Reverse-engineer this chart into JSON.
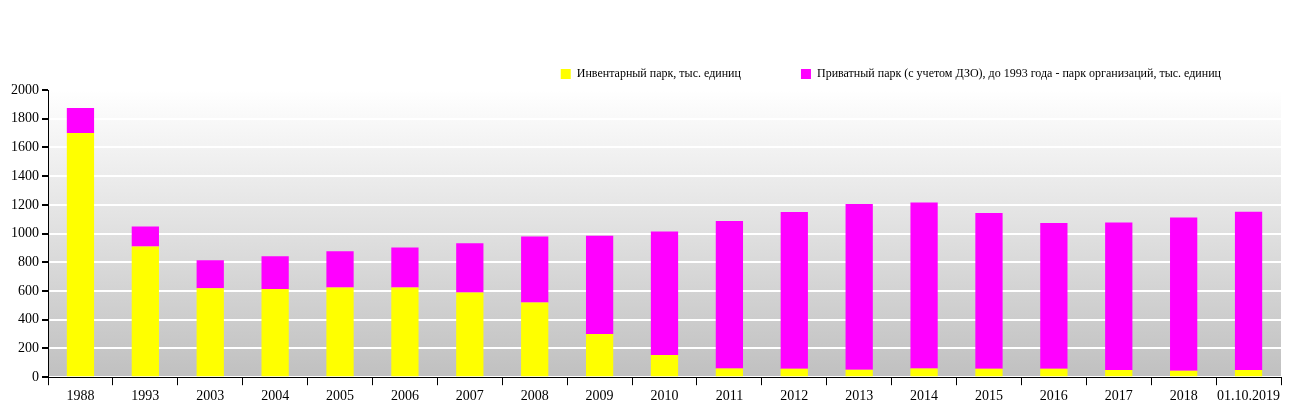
{
  "chart_data": {
    "type": "bar",
    "stacked": true,
    "categories": [
      "1988",
      "1993",
      "2003",
      "2004",
      "2005",
      "2006",
      "2007",
      "2008",
      "2009",
      "2010",
      "2011",
      "2012",
      "2013",
      "2014",
      "2015",
      "2016",
      "2017",
      "2018",
      "01.10.2019"
    ],
    "series": [
      {
        "name": "Инвентарный парк, тыс. единиц",
        "color": "#ffff00",
        "values": [
          1700,
          910,
          620,
          615,
          625,
          625,
          590,
          520,
          300,
          155,
          60,
          58,
          52,
          60,
          58,
          58,
          50,
          45,
          50
        ]
      },
      {
        "name": "Приватный парк (с учетом ДЗО), до 1993 года - парк организаций, тыс. единиц",
        "color": "#ff00ff",
        "values": [
          175,
          140,
          195,
          227,
          252,
          278,
          342,
          460,
          685,
          860,
          1027,
          1092,
          1155,
          1157,
          1085,
          1015,
          1028,
          1067,
          1103
        ]
      }
    ],
    "ylim": [
      0,
      2000
    ],
    "yticks": [
      0,
      200,
      400,
      600,
      800,
      1000,
      1200,
      1400,
      1600,
      1800,
      2000
    ],
    "grid": "y",
    "legend": "top right"
  }
}
